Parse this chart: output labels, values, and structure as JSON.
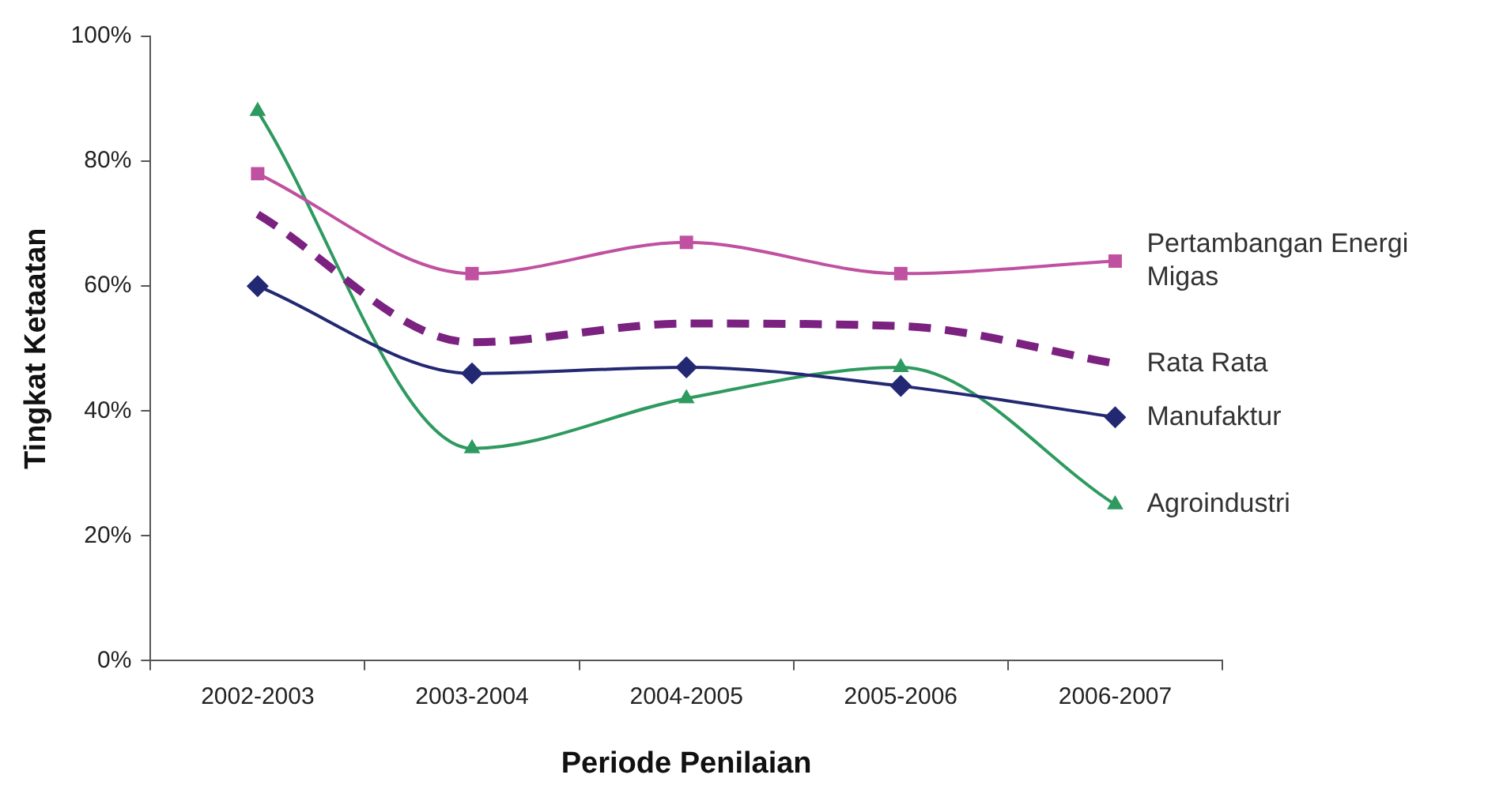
{
  "chart_data": {
    "type": "line",
    "xlabel": "Periode Penilaian",
    "ylabel": "Tingkat Ketaatan",
    "categories": [
      "2002-2003",
      "2003-2004",
      "2004-2005",
      "2005-2006",
      "2006-2007"
    ],
    "ylim": [
      0,
      100
    ],
    "yticks": [
      {
        "value": 0,
        "label": "0%"
      },
      {
        "value": 20,
        "label": "20%"
      },
      {
        "value": 40,
        "label": "40%"
      },
      {
        "value": 60,
        "label": "60%"
      },
      {
        "value": 80,
        "label": "80%"
      },
      {
        "value": 100,
        "label": "100%"
      }
    ],
    "grid": false,
    "series": [
      {
        "name": "Pertambangan Energi Migas",
        "color": "#c050a0",
        "marker": "square",
        "values": [
          78,
          62,
          67,
          62,
          64
        ]
      },
      {
        "name": "Rata Rata",
        "color": "#7b2180",
        "marker": "none",
        "line_style": "dashed",
        "values": [
          71.5,
          51,
          54,
          53.6,
          47.6
        ]
      },
      {
        "name": "Manufaktur",
        "color": "#232873",
        "marker": "diamond",
        "values": [
          60,
          46,
          47,
          44,
          39
        ]
      },
      {
        "name": "Agroindustri",
        "color": "#2e9a5f",
        "marker": "triangle",
        "values": [
          88,
          34,
          42,
          47,
          25
        ]
      }
    ]
  }
}
